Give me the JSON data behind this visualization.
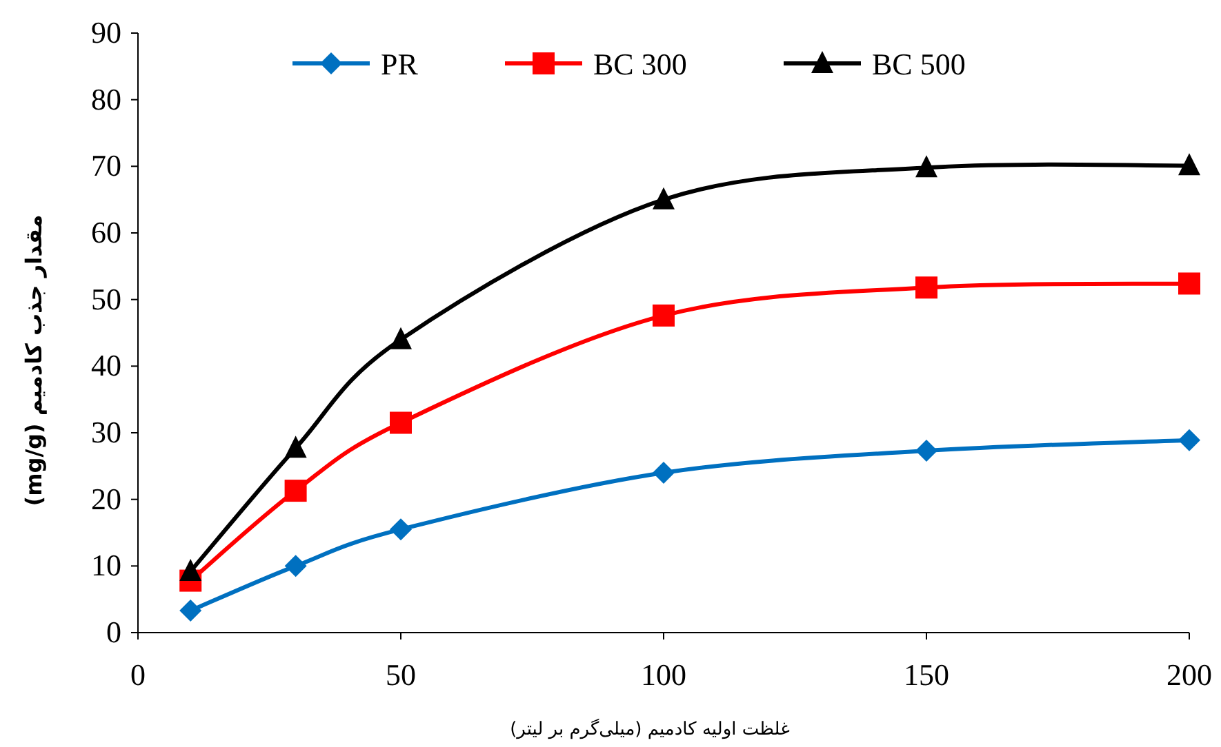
{
  "chart_data": {
    "type": "line",
    "xlabel": "غلظت اولیه کادمیم (میلی‌گرم بر لیتر)",
    "ylabel": "مقدار جذب کادمیم (mg/g)",
    "x": [
      10,
      30,
      50,
      100,
      150,
      200
    ],
    "series": [
      {
        "name": "PR",
        "color": "#0070c0",
        "marker": "diamond",
        "values": [
          3.3,
          10,
          15.5,
          24,
          27.3,
          28.9
        ]
      },
      {
        "name": "BC 300",
        "color": "#ff0000",
        "marker": "square",
        "values": [
          7.8,
          21.3,
          31.5,
          47.6,
          51.8,
          52.4
        ]
      },
      {
        "name": "BC 500",
        "color": "#000000",
        "marker": "triangle",
        "values": [
          9.2,
          27.7,
          44,
          65,
          69.8,
          70.1
        ]
      }
    ],
    "xlim": [
      0,
      200
    ],
    "xticks": [
      0,
      50,
      100,
      150,
      200
    ],
    "ylim": [
      0,
      90
    ],
    "yticks": [
      0,
      10,
      20,
      30,
      40,
      50,
      60,
      70,
      80,
      90
    ],
    "grid": false,
    "legend": "top",
    "line_style": "solid"
  }
}
